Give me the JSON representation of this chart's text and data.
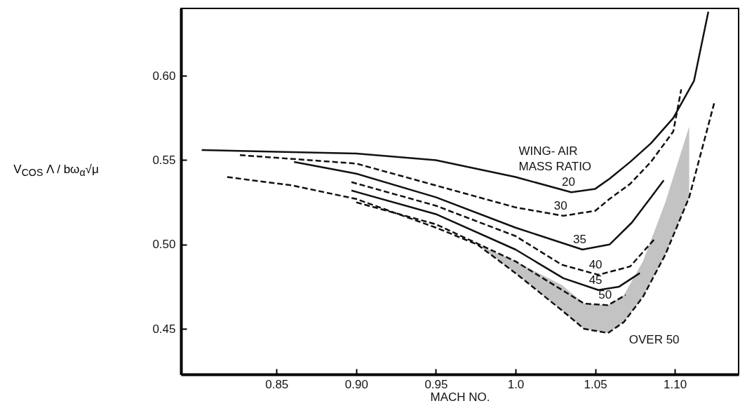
{
  "chart_data": {
    "type": "line",
    "xlabel": "MACH NO.",
    "ylabel": "V$_{COS}$ Λ / bω$_{α}$√μ",
    "legend_title": "WING- AIR MASS RATIO",
    "xlim": [
      0.79,
      1.14
    ],
    "ylim": [
      0.423,
      0.64
    ],
    "xticks": [
      0.85,
      {
        "value": 0.9,
        "label": "0.90"
      },
      0.95,
      {
        "value": 1.0,
        "label": "1.0"
      },
      1.05,
      {
        "value": 1.1,
        "label": "1.10"
      }
    ],
    "yticks": [
      {
        "value": 0.45,
        "label": "0.45"
      },
      {
        "value": 0.5,
        "label": "0.50"
      },
      0.55,
      {
        "value": 0.6,
        "label": "0.60"
      }
    ],
    "series": [
      {
        "name": "20",
        "color": "#111111",
        "line_style": "solid",
        "x": [
          0.803,
          0.85,
          0.9,
          0.95,
          1.0,
          1.035,
          1.05,
          1.059,
          1.072,
          1.085,
          1.099,
          1.112,
          1.121
        ],
        "values": [
          0.556,
          0.555,
          0.554,
          0.55,
          0.54,
          0.531,
          0.533,
          0.539,
          0.549,
          0.56,
          0.575,
          0.597,
          0.638
        ]
      },
      {
        "name": "30",
        "color": "#111111",
        "line_style": "dashed",
        "x": [
          0.827,
          0.9,
          0.95,
          1.0,
          1.03,
          1.05,
          1.059,
          1.072,
          1.085,
          1.099,
          1.104
        ],
        "values": [
          0.553,
          0.548,
          0.535,
          0.522,
          0.517,
          0.52,
          0.527,
          0.536,
          0.549,
          0.567,
          0.592
        ]
      },
      {
        "name": "35",
        "color": "#111111",
        "line_style": "solid",
        "x": [
          0.861,
          0.9,
          0.95,
          1.0,
          1.042,
          1.059,
          1.073,
          1.085,
          1.093
        ],
        "values": [
          0.549,
          0.542,
          0.528,
          0.51,
          0.497,
          0.5,
          0.513,
          0.528,
          0.538
        ]
      },
      {
        "name": "40",
        "color": "#111111",
        "line_style": "dashed",
        "x": [
          0.897,
          0.95,
          1.0,
          1.029,
          1.052,
          1.072,
          1.087
        ],
        "values": [
          0.537,
          0.523,
          0.505,
          0.488,
          0.482,
          0.487,
          0.503
        ]
      },
      {
        "name": "45",
        "color": "#111111",
        "line_style": "solid",
        "x": [
          0.897,
          0.95,
          1.0,
          1.03,
          1.052,
          1.065,
          1.078
        ],
        "values": [
          0.532,
          0.518,
          0.497,
          0.48,
          0.473,
          0.475,
          0.483
        ]
      },
      {
        "name": "50",
        "color": "#111111",
        "line_style": "dashed",
        "x": [
          0.9,
          0.95,
          1.0,
          1.043,
          1.058,
          1.069
        ],
        "values": [
          0.525,
          0.512,
          0.49,
          0.465,
          0.464,
          0.47
        ]
      },
      {
        "name": "OVER 50",
        "color": "#111111",
        "line_style": "dashed",
        "x": [
          0.819,
          0.86,
          0.9,
          0.95,
          0.976,
          1.0,
          1.029,
          1.043,
          1.058,
          1.068,
          1.08,
          1.094,
          1.109,
          1.125
        ],
        "values": [
          0.54,
          0.535,
          0.527,
          0.51,
          0.5,
          0.483,
          0.461,
          0.45,
          0.4475,
          0.454,
          0.469,
          0.494,
          0.528,
          0.585
        ],
        "upper": [
          null,
          null,
          null,
          null,
          0.5,
          0.49,
          0.476,
          0.465,
          0.464,
          0.47,
          0.49,
          0.525,
          0.57,
          null
        ],
        "lower": [
          null,
          null,
          null,
          null,
          0.5,
          0.483,
          0.461,
          0.45,
          0.4475,
          0.454,
          0.469,
          0.494,
          0.528,
          null
        ]
      }
    ]
  }
}
